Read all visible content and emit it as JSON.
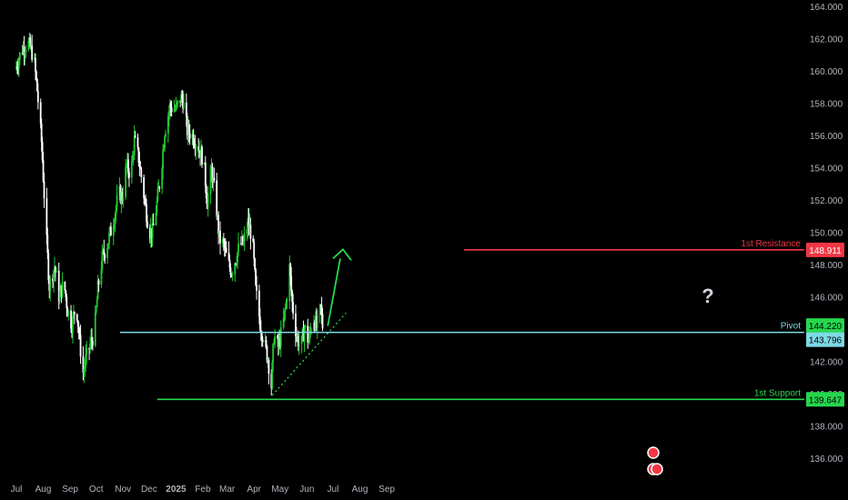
{
  "colors": {
    "background": "#000000",
    "up_candle": "#22c932",
    "down_candle": "#ffffff",
    "resistance": "#f23645",
    "pivot": "#7ed9e6",
    "support": "#26d64d",
    "trendline": "#26d64d",
    "arrow": "#26d64d",
    "axis_text": "#b2b5be",
    "current_price_tag": "#26d64d",
    "current_price_text": "#000000"
  },
  "chart_data": {
    "type": "candlestick",
    "title": "",
    "xlabel": "",
    "ylabel": "",
    "ylim": [
      135,
      164
    ],
    "y_ticks": [
      "136.000",
      "138.000",
      "140.000",
      "142.000",
      "144.000",
      "146.000",
      "148.000",
      "150.000",
      "152.000",
      "154.000",
      "156.000",
      "158.000",
      "160.000",
      "162.000",
      "164.000"
    ],
    "x_ticks": [
      "Jul",
      "Aug",
      "Sep",
      "Oct",
      "Nov",
      "Dec",
      "2025",
      "Feb",
      "Mar",
      "Apr",
      "May",
      "Jun",
      "Jul",
      "Aug",
      "Sep"
    ],
    "levels": [
      {
        "name": "1st Resistance",
        "value": 148.911,
        "label": "148.911",
        "color_key": "resistance"
      },
      {
        "name": "Pivot",
        "value": 143.796,
        "label": "143.796",
        "color_key": "pivot"
      },
      {
        "name": "1st Support",
        "value": 139.647,
        "label": "139.647",
        "color_key": "support"
      }
    ],
    "current_price": {
      "value": 144.22,
      "label": "144.220"
    },
    "annotation": "?",
    "trendline": {
      "start": {
        "date": "2025-04-22",
        "price": 139.9
      },
      "end": {
        "date": "2025-07-16",
        "price": 145.0
      }
    },
    "projection_arrow": {
      "start": {
        "date": "2025-06-25",
        "price": 144.2
      },
      "end": {
        "date": "2025-07-01",
        "price": 148.6
      }
    },
    "series": [
      {
        "date": "2024-07-01",
        "close": 160.1
      },
      {
        "date": "2024-07-08",
        "close": 161.3
      },
      {
        "date": "2024-07-15",
        "close": 161.8
      },
      {
        "date": "2024-07-22",
        "close": 160.9
      },
      {
        "date": "2024-07-26",
        "close": 158.8
      },
      {
        "date": "2024-07-31",
        "close": 155.6
      },
      {
        "date": "2024-08-05",
        "close": 150.2
      },
      {
        "date": "2024-08-09",
        "close": 146.7
      },
      {
        "date": "2024-08-15",
        "close": 147.9
      },
      {
        "date": "2024-08-20",
        "close": 146.1
      },
      {
        "date": "2024-08-26",
        "close": 146.8
      },
      {
        "date": "2024-08-30",
        "close": 145.2
      },
      {
        "date": "2024-09-04",
        "close": 144.3
      },
      {
        "date": "2024-09-09",
        "close": 145.6
      },
      {
        "date": "2024-09-13",
        "close": 143.2
      },
      {
        "date": "2024-09-17",
        "close": 141.3
      },
      {
        "date": "2024-09-20",
        "close": 142.1
      },
      {
        "date": "2024-09-25",
        "close": 143.0
      },
      {
        "date": "2024-09-30",
        "close": 143.8
      },
      {
        "date": "2024-10-04",
        "close": 146.5
      },
      {
        "date": "2024-10-09",
        "close": 148.4
      },
      {
        "date": "2024-10-15",
        "close": 149.3
      },
      {
        "date": "2024-10-21",
        "close": 150.5
      },
      {
        "date": "2024-10-28",
        "close": 152.4
      },
      {
        "date": "2024-11-01",
        "close": 152.2
      },
      {
        "date": "2024-11-06",
        "close": 154.1
      },
      {
        "date": "2024-11-11",
        "close": 153.6
      },
      {
        "date": "2024-11-15",
        "close": 155.7
      },
      {
        "date": "2024-11-20",
        "close": 154.6
      },
      {
        "date": "2024-11-26",
        "close": 152.3
      },
      {
        "date": "2024-12-02",
        "close": 150.1
      },
      {
        "date": "2024-12-06",
        "close": 150.0
      },
      {
        "date": "2024-12-11",
        "close": 151.8
      },
      {
        "date": "2024-12-16",
        "close": 153.8
      },
      {
        "date": "2024-12-20",
        "close": 156.3
      },
      {
        "date": "2024-12-26",
        "close": 157.8
      },
      {
        "date": "2025-01-02",
        "close": 157.6
      },
      {
        "date": "2025-01-07",
        "close": 158.3
      },
      {
        "date": "2025-01-10",
        "close": 158.2
      },
      {
        "date": "2025-01-15",
        "close": 156.3
      },
      {
        "date": "2025-01-20",
        "close": 156.1
      },
      {
        "date": "2025-01-24",
        "close": 155.7
      },
      {
        "date": "2025-01-29",
        "close": 155.2
      },
      {
        "date": "2025-02-03",
        "close": 154.4
      },
      {
        "date": "2025-02-07",
        "close": 151.9
      },
      {
        "date": "2025-02-12",
        "close": 153.9
      },
      {
        "date": "2025-02-17",
        "close": 151.9
      },
      {
        "date": "2025-02-21",
        "close": 149.6
      },
      {
        "date": "2025-02-26",
        "close": 149.2
      },
      {
        "date": "2025-03-03",
        "close": 148.1
      },
      {
        "date": "2025-03-07",
        "close": 147.6
      },
      {
        "date": "2025-03-12",
        "close": 148.4
      },
      {
        "date": "2025-03-17",
        "close": 149.3
      },
      {
        "date": "2025-03-21",
        "close": 149.3
      },
      {
        "date": "2025-03-26",
        "close": 150.6
      },
      {
        "date": "2025-03-31",
        "close": 149.7
      },
      {
        "date": "2025-04-04",
        "close": 146.4
      },
      {
        "date": "2025-04-09",
        "close": 144.4
      },
      {
        "date": "2025-04-14",
        "close": 143.1
      },
      {
        "date": "2025-04-18",
        "close": 142.2
      },
      {
        "date": "2025-04-22",
        "close": 140.5
      },
      {
        "date": "2025-04-25",
        "close": 143.6
      },
      {
        "date": "2025-04-30",
        "close": 142.9
      },
      {
        "date": "2025-05-05",
        "close": 144.1
      },
      {
        "date": "2025-05-09",
        "close": 145.6
      },
      {
        "date": "2025-05-13",
        "close": 147.8
      },
      {
        "date": "2025-05-16",
        "close": 145.6
      },
      {
        "date": "2025-05-21",
        "close": 143.6
      },
      {
        "date": "2025-05-26",
        "close": 142.8
      },
      {
        "date": "2025-05-30",
        "close": 144.1
      },
      {
        "date": "2025-06-04",
        "close": 143.2
      },
      {
        "date": "2025-06-09",
        "close": 144.9
      },
      {
        "date": "2025-06-13",
        "close": 144.1
      },
      {
        "date": "2025-06-16",
        "close": 144.8
      },
      {
        "date": "2025-06-18",
        "close": 145.3
      },
      {
        "date": "2025-06-20",
        "close": 144.2
      }
    ]
  },
  "price_labels": {
    "resistance": "148.911",
    "current": "144.220",
    "pivot": "143.796",
    "support": "139.647"
  }
}
